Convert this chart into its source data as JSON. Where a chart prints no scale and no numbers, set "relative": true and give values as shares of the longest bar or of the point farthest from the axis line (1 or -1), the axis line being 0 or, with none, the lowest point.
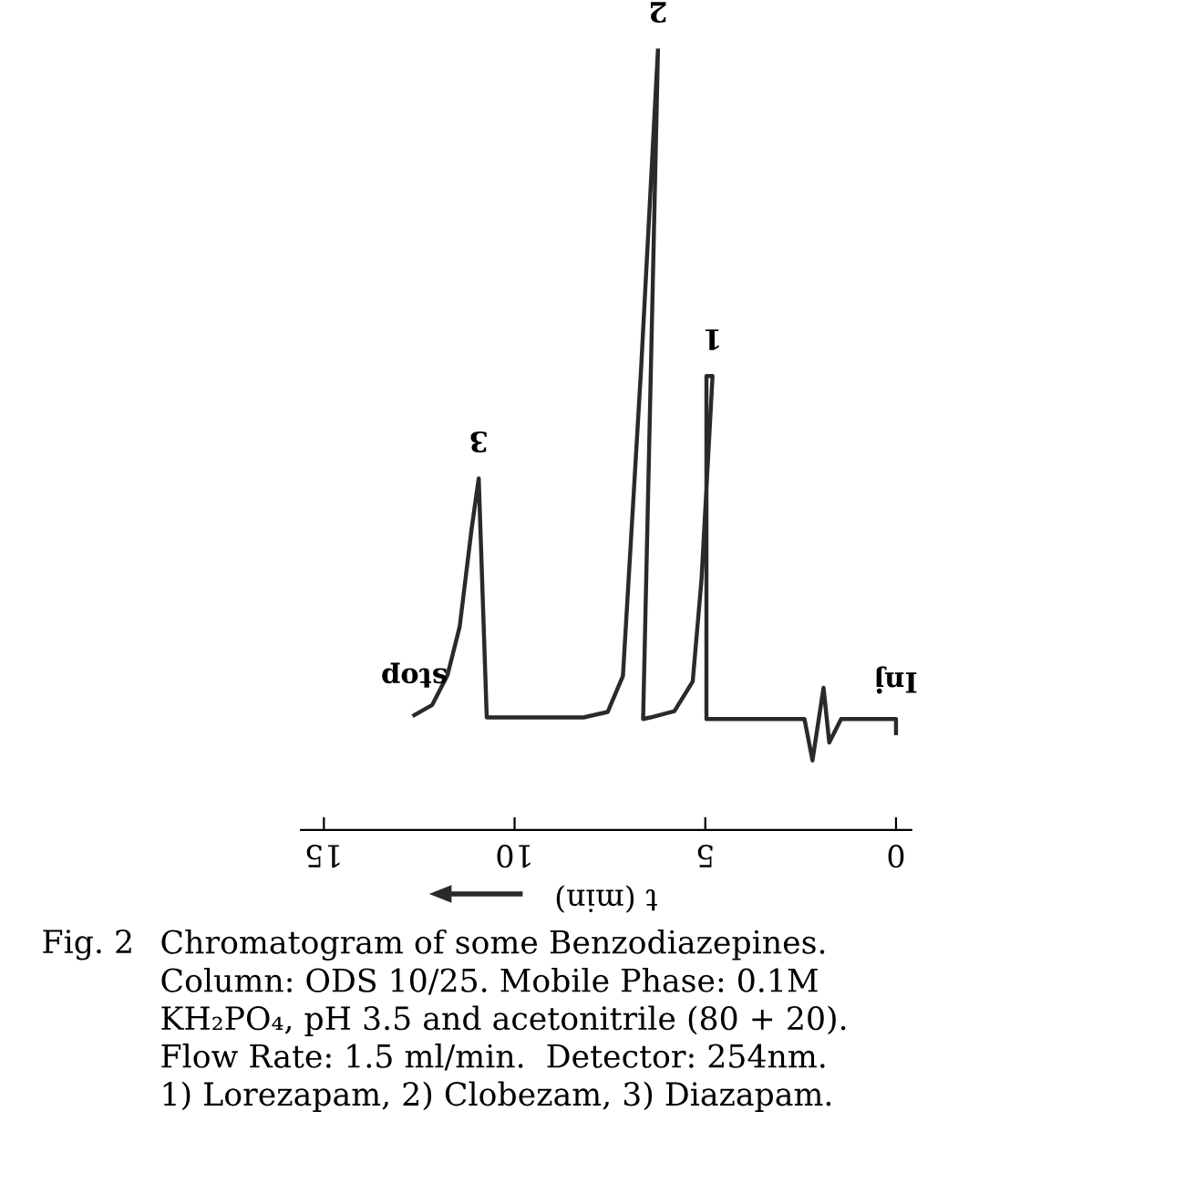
{
  "chart_data": {
    "type": "line",
    "relative": true,
    "xlabel": "t (min)",
    "x": [
      0,
      0,
      1.44,
      1.75,
      1.9,
      2.19,
      2.4,
      4.97,
      4.97,
      4.81,
      5.1,
      5.33,
      5.81,
      6.44,
      6.63,
      6.24,
      6.68,
      7.16,
      7.56,
      8.19,
      10.73,
      10.73,
      10.94,
      11.13,
      11.44,
      11.76,
      12.16,
      12.63
    ],
    "series": [
      {
        "color": "#2a2a2a",
        "values": [
          0.124,
          0.142,
          0.142,
          0.112,
          0.182,
          0.089,
          0.142,
          0.142,
          0.581,
          0.581,
          0.32,
          0.19,
          0.152,
          0.144,
          0.142,
          1.0,
          0.593,
          0.197,
          0.151,
          0.144,
          0.144,
          0.144,
          0.45,
          0.384,
          0.26,
          0.198,
          0.16,
          0.147
        ]
      }
    ],
    "xlim": [
      15.6,
      -0.4
    ],
    "xticks": [
      0,
      5,
      10,
      15
    ],
    "grid": false,
    "legend": false,
    "marker": "none",
    "line_style": "solid",
    "annotations": [
      {
        "text": "1",
        "x": 4.81,
        "y": 0.581
      },
      {
        "text": "2",
        "x": 6.24,
        "y": 1.0
      },
      {
        "text": "3",
        "x": 10.94,
        "y": 0.45
      },
      {
        "text": "Inj",
        "x": 0,
        "y": 0.142
      },
      {
        "text": "stop",
        "x": 12.63,
        "y": 0.147
      },
      "Fig. 2",
      "Chromatogram of some Benzodiazepines.\nColumn: ODS 10/25. Mobile Phase: 0.1M\nKH₂PO₄, pH 3.5 and acetonitrile (80 + 20).\nFlow Rate: 1.5 ml/min.  Detector: 254nm.\n1) Lorezapam, 2) Clobezam, 3) Diazapam."
    ]
  }
}
